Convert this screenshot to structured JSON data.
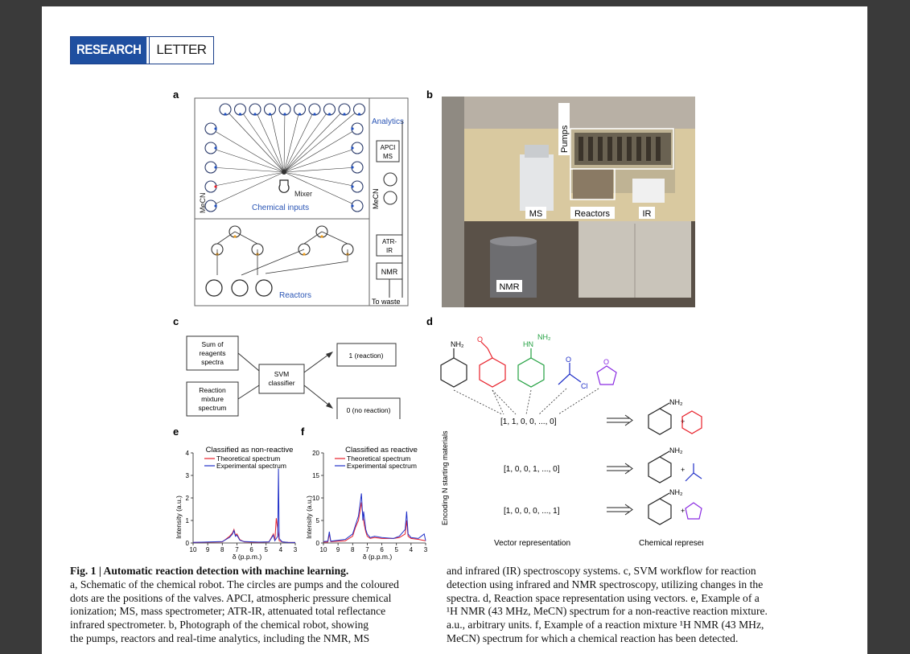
{
  "header": {
    "research": "RESEARCH",
    "letter": "LETTER"
  },
  "panels": {
    "a": "a",
    "b": "b",
    "c": "c",
    "d": "d",
    "e": "e",
    "f": "f"
  },
  "panel_a": {
    "analytics": "Analytics",
    "apci": "APCI",
    "ms": "MS",
    "mixer": "Mixer",
    "chemical_inputs": "Chemical inputs",
    "mecn_left": "MeCN",
    "mecn_right": "MeCN",
    "atr": "ATR-",
    "ir": "IR",
    "nmr": "NMR",
    "to_waste": "To waste",
    "reactors": "Reactors"
  },
  "panel_b": {
    "pumps": "Pumps",
    "ms": "MS",
    "reactors": "Reactors",
    "ir": "IR",
    "nmr": "NMR"
  },
  "panel_c": {
    "box1": [
      "Sum of",
      "reagents",
      "spectra"
    ],
    "box2": [
      "Reaction",
      "mixture",
      "spectrum"
    ],
    "svm": [
      "SVM",
      "classifier"
    ],
    "out1": "1 (reaction)",
    "out0": "0 (no reaction)"
  },
  "panel_d": {
    "nh2": "NH₂",
    "hn": "HN",
    "cl": "Cl",
    "o": "O",
    "plus": "+",
    "vec1": "[1,  1,  0,  0,  ...,  0]",
    "vec2": "[1,  0,  0,  1,  ...,  0]",
    "vec3": "[1,  0,  0,  0,  ...,  1]",
    "ylabel": "Encoding N starting materials",
    "xlabel_left": "Vector representation",
    "xlabel_right": "Chemical representation"
  },
  "chart_data": [
    {
      "type": "line",
      "title": "Classified as non-reactive",
      "xlabel": "δ (p.p.m.)",
      "ylabel": "Intensity (a.u.)",
      "xlim": [
        10,
        3
      ],
      "ylim": [
        0,
        4
      ],
      "xticks": [
        "10",
        "9",
        "8",
        "7",
        "6",
        "5",
        "4",
        "3"
      ],
      "yticks": [
        "0",
        "1",
        "2",
        "3",
        "4"
      ],
      "series": [
        {
          "name": "Theoretical spectrum",
          "color": "#e8202a",
          "x": [
            10,
            8,
            7.5,
            7.3,
            7.2,
            7.1,
            7.0,
            6.8,
            6.5,
            5.5,
            4.8,
            4.5,
            4.4,
            4.3,
            4.1,
            3.9,
            3.5,
            3
          ],
          "y": [
            0.02,
            0.05,
            0.3,
            0.45,
            0.6,
            0.35,
            0.4,
            0.15,
            0.05,
            0.03,
            0.05,
            0.4,
            0.1,
            1.1,
            0.1,
            0.05,
            0.03,
            0.02
          ]
        },
        {
          "name": "Experimental spectrum",
          "color": "#2030c8",
          "x": [
            10,
            8,
            7.5,
            7.3,
            7.2,
            7.1,
            7.0,
            6.8,
            6.5,
            5.5,
            4.8,
            4.5,
            4.4,
            4.2,
            4.15,
            4.1,
            3.9,
            3.5,
            3
          ],
          "y": [
            0.03,
            0.06,
            0.25,
            0.4,
            0.55,
            0.3,
            0.35,
            0.12,
            0.06,
            0.04,
            0.05,
            0.35,
            0.1,
            0.3,
            3.3,
            0.2,
            0.05,
            0.03,
            0.02
          ]
        }
      ]
    },
    {
      "type": "line",
      "title": "Classified as reactive",
      "xlabel": "δ (p.p.m.)",
      "ylabel": "Intensity (a.u.)",
      "xlim": [
        10,
        3
      ],
      "ylim": [
        0,
        20
      ],
      "xticks": [
        "10",
        "9",
        "8",
        "7",
        "6",
        "5",
        "4",
        "3"
      ],
      "yticks": [
        "0",
        "5",
        "10",
        "15",
        "20"
      ],
      "series": [
        {
          "name": "Theoretical spectrum",
          "color": "#e8202a",
          "x": [
            10,
            9.7,
            9.6,
            9.5,
            8.5,
            8,
            7.8,
            7.6,
            7.5,
            7.4,
            7.3,
            7.2,
            7.1,
            7.0,
            6.8,
            6.5,
            6,
            5.2,
            4.8,
            4.4,
            4.3,
            4.2,
            4,
            3.5,
            3
          ],
          "y": [
            0.2,
            0.2,
            2.0,
            0.3,
            0.5,
            1.5,
            3.5,
            5,
            7,
            9,
            6,
            4,
            2.5,
            1.5,
            1,
            1.2,
            1,
            1,
            1.2,
            2,
            5,
            1.5,
            1,
            0.8,
            0.5
          ]
        },
        {
          "name": "Experimental spectrum",
          "color": "#2030c8",
          "x": [
            10,
            9.7,
            9.6,
            9.5,
            8.5,
            8,
            7.8,
            7.6,
            7.5,
            7.4,
            7.3,
            7.25,
            7.1,
            7.0,
            6.8,
            6.5,
            6,
            5.2,
            4.8,
            4.4,
            4.3,
            4.2,
            4,
            3.5,
            3.1,
            3
          ],
          "y": [
            0.3,
            0.4,
            2.5,
            0.4,
            0.8,
            2,
            4,
            6,
            8.5,
            11,
            5,
            7,
            3,
            2,
            1.2,
            1.5,
            1.2,
            1,
            1.5,
            3,
            7,
            2,
            1.2,
            1,
            2,
            0.5
          ]
        }
      ]
    }
  ],
  "caption": {
    "fig": "Fig. 1 | Automatic reaction detection with machine learning.",
    "left": [
      "a, Schematic of the chemical robot. The circles are pumps and the coloured",
      "dots are the positions of the valves. APCI, atmospheric pressure chemical",
      "ionization; MS, mass spectrometer; ATR-IR, attenuated total reflectance",
      "infrared spectrometer. b, Photograph of the chemical robot, showing",
      "the pumps, reactors and real-time analytics, including the NMR, MS"
    ],
    "right": [
      "and infrared (IR) spectroscopy systems. c, SVM workflow for reaction",
      "detection using infrared and NMR spectroscopy, utilizing changes in the",
      "spectra. d, Reaction space representation using vectors. e, Example of a",
      "¹H NMR (43 MHz, MeCN) spectrum for a non-reactive reaction mixture.",
      "a.u., arbitrary units. f, Example of a reaction mixture ¹H NMR (43 MHz,",
      "MeCN) spectrum for which a chemical reaction has been detected."
    ]
  },
  "colors": {
    "accent": "#1f4fa0",
    "red": "#e8202a",
    "blue": "#2030c8",
    "green": "#22a040",
    "purple": "#8a2be2",
    "valve": "#f0a020"
  }
}
